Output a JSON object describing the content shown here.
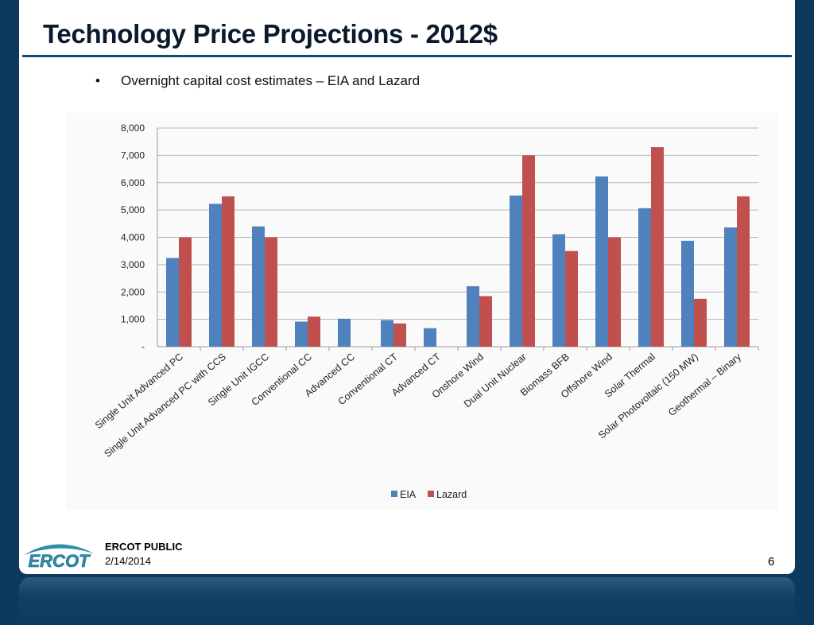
{
  "slide": {
    "title": "Technology Price Projections - 2012$",
    "bullet": "Overnight capital cost estimates – EIA and Lazard"
  },
  "footer": {
    "logo_text": "ERCOT",
    "label": "ERCOT PUBLIC",
    "date": "2/14/2014",
    "page_number": "6"
  },
  "colors": {
    "eia": "#4f81bd",
    "lazard": "#c0504d",
    "background": "#0d3a5c"
  },
  "chart_data": {
    "type": "bar",
    "categories": [
      "Single Unit Advanced PC",
      "Single Unit Advanced PC with CCS",
      "Single Unit IGCC",
      "Conventional CC",
      "Advanced CC",
      "Conventional CT",
      "Advanced CT",
      "Onshore Wind",
      "Dual Unit Nuclear",
      "Biomass BFB",
      "Offshore Wind",
      "Solar Thermal",
      "Solar Photovoltaic (150 MW)",
      "Geothermal – Binary"
    ],
    "series": [
      {
        "name": "EIA",
        "values": [
          3246,
          5227,
          4400,
          917,
          1023,
          973,
          676,
          2213,
          5530,
          4114,
          6230,
          5067,
          3873,
          4362
        ]
      },
      {
        "name": "Lazard",
        "values": [
          4000,
          5500,
          4000,
          1100,
          null,
          850,
          null,
          1850,
          7000,
          3500,
          4000,
          7300,
          1750,
          5500
        ]
      }
    ],
    "yticks": [
      "-",
      "1,000",
      "2,000",
      "3,000",
      "4,000",
      "5,000",
      "6,000",
      "7,000",
      "8,000"
    ],
    "ylim": [
      0,
      8000
    ],
    "grid": true,
    "legend": "bottom"
  }
}
